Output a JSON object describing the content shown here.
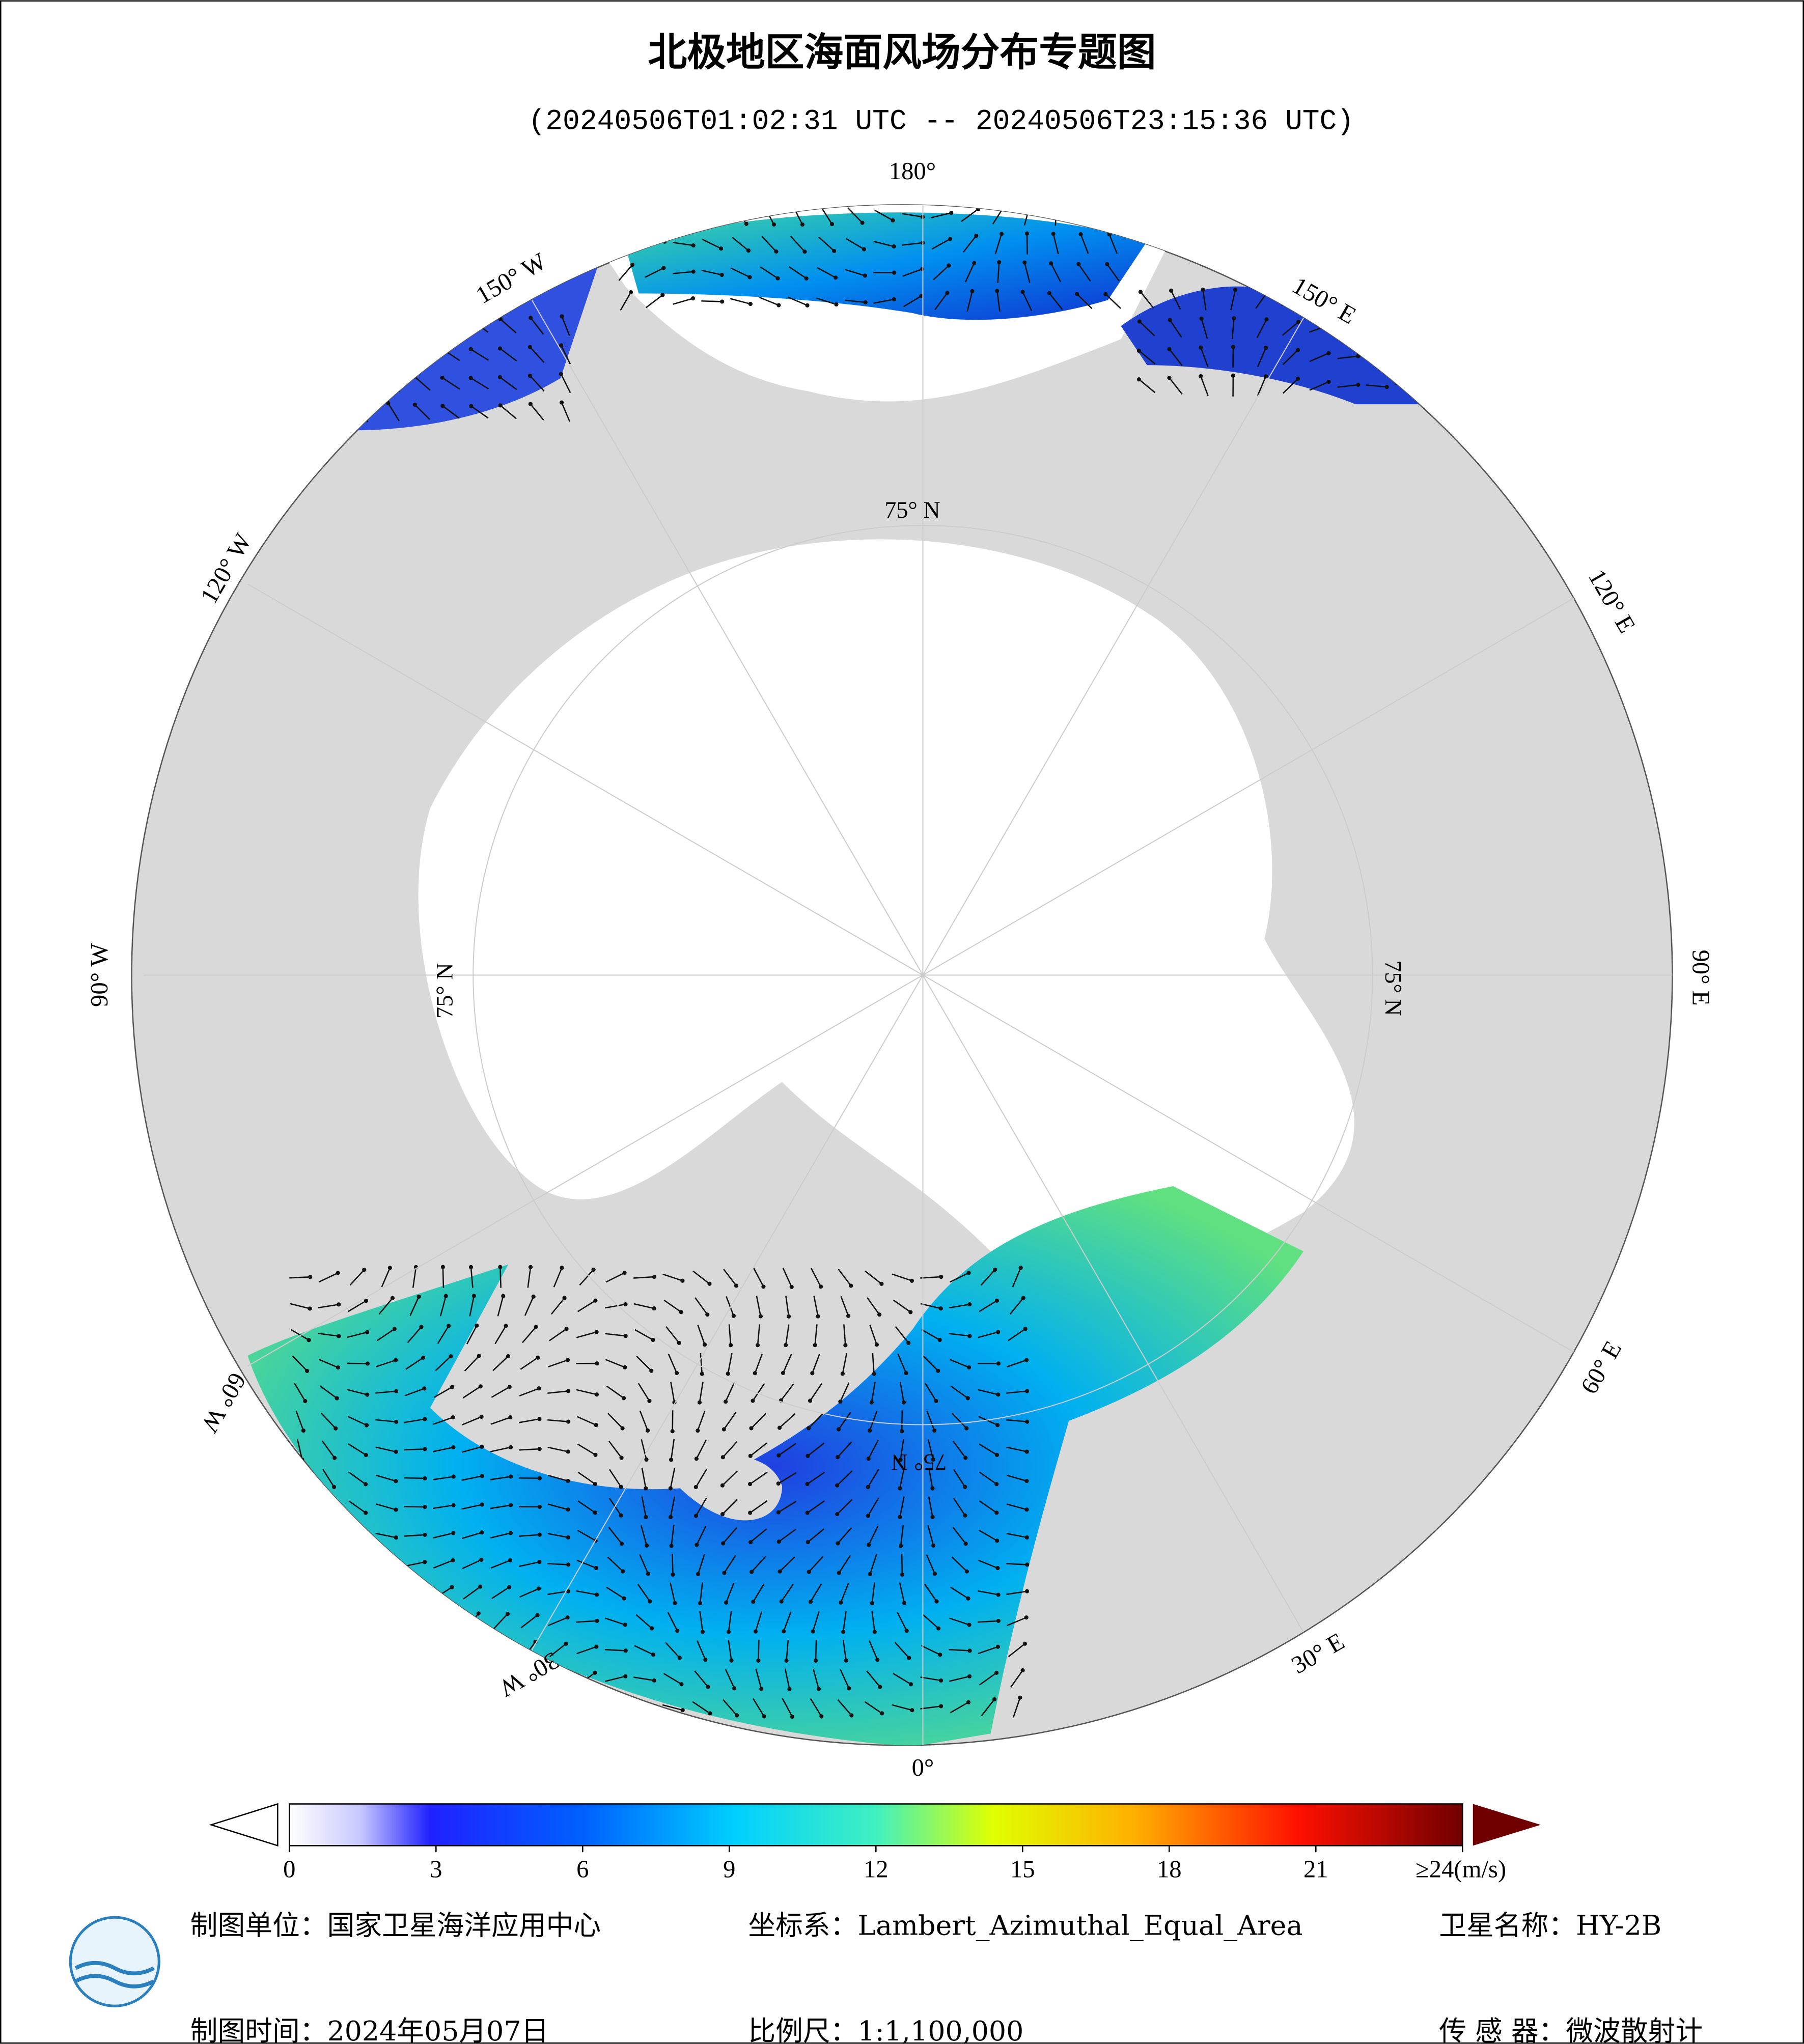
{
  "title": "北极地区海面风场分布专题图",
  "subtitle": "(20240506T01:02:31 UTC -- 20240506T23:15:36 UTC)",
  "map": {
    "lon_labels": [
      "180°",
      "150° E",
      "120° E",
      "90° E",
      "60° E",
      "30° E",
      "0°",
      "30° W",
      "60° W",
      "90° W",
      "120° W",
      "150° W"
    ],
    "lat_label": "75° N"
  },
  "colorbar": {
    "lim": [
      0,
      24
    ],
    "ticks": [
      0,
      3,
      6,
      9,
      12,
      15,
      18,
      21,
      {
        "value": 24,
        "label": "≥24(m/s)"
      }
    ]
  },
  "footer": {
    "unit": "制图单位：国家卫星海洋应用中心",
    "coords": "坐标系：Lambert_Azimuthal_Equal_Area",
    "satellite": "卫星名称：HY-2B",
    "date": "制图时间：2024年05月07日",
    "scale": "比例尺：1:1,100,000",
    "sensor": "传 感 器：微波散射计"
  }
}
